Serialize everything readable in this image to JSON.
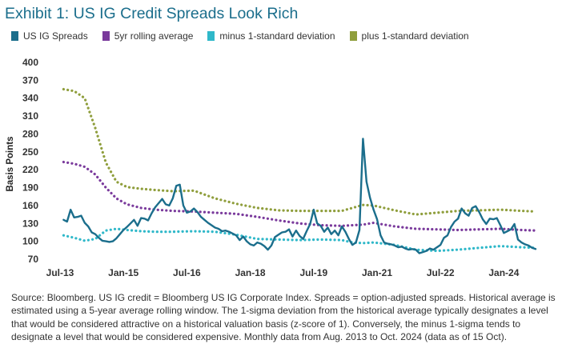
{
  "chart_data": {
    "type": "line",
    "title": "Exhibit 1: US IG Credit Spreads Look Rich",
    "xlabel": "",
    "ylabel": "Basis Points",
    "ylim": [
      70,
      400
    ],
    "yticks": [
      70,
      100,
      130,
      160,
      190,
      220,
      250,
      280,
      310,
      340,
      370,
      400
    ],
    "xlim": [
      "2013-08",
      "2024-10"
    ],
    "xticks": [
      {
        "x": "2013-07",
        "label": "Jul-13"
      },
      {
        "x": "2015-01",
        "label": "Jan-15"
      },
      {
        "x": "2016-07",
        "label": "Jul-16"
      },
      {
        "x": "2018-01",
        "label": "Jan-18"
      },
      {
        "x": "2019-07",
        "label": "Jul-19"
      },
      {
        "x": "2021-01",
        "label": "Jan-21"
      },
      {
        "x": "2022-07",
        "label": "Jul-22"
      },
      {
        "x": "2024-01",
        "label": "Jan-24"
      }
    ],
    "grid": false,
    "legend_position": "top",
    "series": [
      {
        "name": "US IG Spreads",
        "color": "#1b6e8c",
        "style": "solid",
        "points": [
          [
            "2013-08",
            136
          ],
          [
            "2013-09",
            133
          ],
          [
            "2013-10",
            153
          ],
          [
            "2013-11",
            140
          ],
          [
            "2013-12",
            141
          ],
          [
            "2014-01",
            143
          ],
          [
            "2014-02",
            131
          ],
          [
            "2014-03",
            125
          ],
          [
            "2014-04",
            115
          ],
          [
            "2014-05",
            112
          ],
          [
            "2014-06",
            106
          ],
          [
            "2014-07",
            101
          ],
          [
            "2014-08",
            100
          ],
          [
            "2014-09",
            99
          ],
          [
            "2014-10",
            100
          ],
          [
            "2014-11",
            105
          ],
          [
            "2014-12",
            112
          ],
          [
            "2015-01",
            119
          ],
          [
            "2015-02",
            124
          ],
          [
            "2015-03",
            130
          ],
          [
            "2015-04",
            136
          ],
          [
            "2015-05",
            126
          ],
          [
            "2015-06",
            139
          ],
          [
            "2015-07",
            138
          ],
          [
            "2015-08",
            135
          ],
          [
            "2015-09",
            147
          ],
          [
            "2015-10",
            157
          ],
          [
            "2015-11",
            164
          ],
          [
            "2015-12",
            171
          ],
          [
            "2016-01",
            162
          ],
          [
            "2016-02",
            160
          ],
          [
            "2016-03",
            172
          ],
          [
            "2016-04",
            193
          ],
          [
            "2016-05",
            195
          ],
          [
            "2016-06",
            160
          ],
          [
            "2016-07",
            148
          ],
          [
            "2016-08",
            150
          ],
          [
            "2016-09",
            155
          ],
          [
            "2016-10",
            149
          ],
          [
            "2016-11",
            141
          ],
          [
            "2016-12",
            136
          ],
          [
            "2017-01",
            131
          ],
          [
            "2017-02",
            127
          ],
          [
            "2017-03",
            123
          ],
          [
            "2017-04",
            121
          ],
          [
            "2017-05",
            117
          ],
          [
            "2017-06",
            118
          ],
          [
            "2017-07",
            116
          ],
          [
            "2017-08",
            113
          ],
          [
            "2017-09",
            110
          ],
          [
            "2017-10",
            102
          ],
          [
            "2017-11",
            108
          ],
          [
            "2017-12",
            100
          ],
          [
            "2018-01",
            95
          ],
          [
            "2018-02",
            93
          ],
          [
            "2018-03",
            98
          ],
          [
            "2018-04",
            96
          ],
          [
            "2018-05",
            92
          ],
          [
            "2018-06",
            86
          ],
          [
            "2018-07",
            93
          ],
          [
            "2018-08",
            107
          ],
          [
            "2018-09",
            111
          ],
          [
            "2018-10",
            115
          ],
          [
            "2018-11",
            116
          ],
          [
            "2018-12",
            120
          ],
          [
            "2019-01",
            108
          ],
          [
            "2019-02",
            118
          ],
          [
            "2019-03",
            109
          ],
          [
            "2019-04",
            104
          ],
          [
            "2019-05",
            117
          ],
          [
            "2019-06",
            129
          ],
          [
            "2019-07",
            153
          ],
          [
            "2019-08",
            130
          ],
          [
            "2019-09",
            126
          ],
          [
            "2019-10",
            116
          ],
          [
            "2019-11",
            123
          ],
          [
            "2019-12",
            112
          ],
          [
            "2020-01",
            118
          ],
          [
            "2020-02",
            110
          ],
          [
            "2020-03",
            125
          ],
          [
            "2020-04",
            116
          ],
          [
            "2020-05",
            104
          ],
          [
            "2020-06",
            94
          ],
          [
            "2020-07",
            98
          ],
          [
            "2020-08",
            119
          ],
          [
            "2020-09",
            272
          ],
          [
            "2020-10",
            200
          ],
          [
            "2020-11",
            173
          ],
          [
            "2020-12",
            153
          ],
          [
            "2021-01",
            137
          ],
          [
            "2021-02",
            110
          ],
          [
            "2021-03",
            98
          ],
          [
            "2021-04",
            96
          ],
          [
            "2021-05",
            95
          ],
          [
            "2021-06",
            93
          ],
          [
            "2021-07",
            90
          ],
          [
            "2021-08",
            91
          ],
          [
            "2021-09",
            88
          ],
          [
            "2021-10",
            86
          ],
          [
            "2021-11",
            87
          ],
          [
            "2021-12",
            86
          ],
          [
            "2022-01",
            80
          ],
          [
            "2022-02",
            82
          ],
          [
            "2022-03",
            84
          ],
          [
            "2022-04",
            88
          ],
          [
            "2022-05",
            86
          ],
          [
            "2022-06",
            90
          ],
          [
            "2022-07",
            94
          ],
          [
            "2022-08",
            106
          ],
          [
            "2022-09",
            110
          ],
          [
            "2022-10",
            124
          ],
          [
            "2022-11",
            133
          ],
          [
            "2022-12",
            138
          ],
          [
            "2023-01",
            155
          ],
          [
            "2023-02",
            147
          ],
          [
            "2023-03",
            143
          ],
          [
            "2023-04",
            156
          ],
          [
            "2023-05",
            159
          ],
          [
            "2023-06",
            149
          ],
          [
            "2023-07",
            137
          ],
          [
            "2023-08",
            129
          ],
          [
            "2023-09",
            138
          ],
          [
            "2023-10",
            137
          ],
          [
            "2023-11",
            139
          ],
          [
            "2023-12",
            127
          ],
          [
            "2024-01",
            114
          ],
          [
            "2024-02",
            117
          ],
          [
            "2024-03",
            120
          ],
          [
            "2024-04",
            129
          ],
          [
            "2024-05",
            103
          ],
          [
            "2024-06",
            98
          ],
          [
            "2024-07",
            95
          ],
          [
            "2024-08",
            93
          ],
          [
            "2024-09",
            89
          ],
          [
            "2024-10",
            87
          ]
        ]
      },
      {
        "name": "5yr rolling average",
        "color": "#7a3a9c",
        "style": "dotted",
        "points": [
          [
            "2013-08",
            233
          ],
          [
            "2013-11",
            230
          ],
          [
            "2014-02",
            225
          ],
          [
            "2014-05",
            212
          ],
          [
            "2014-08",
            190
          ],
          [
            "2014-11",
            172
          ],
          [
            "2015-02",
            162
          ],
          [
            "2015-06",
            156
          ],
          [
            "2015-10",
            153
          ],
          [
            "2016-03",
            151
          ],
          [
            "2016-09",
            150
          ],
          [
            "2017-03",
            148
          ],
          [
            "2017-09",
            146
          ],
          [
            "2018-03",
            141
          ],
          [
            "2018-09",
            135
          ],
          [
            "2019-03",
            130
          ],
          [
            "2019-09",
            127
          ],
          [
            "2020-03",
            126
          ],
          [
            "2020-09",
            128
          ],
          [
            "2020-12",
            131
          ],
          [
            "2021-06",
            125
          ],
          [
            "2021-12",
            121
          ],
          [
            "2022-06",
            120
          ],
          [
            "2022-12",
            119
          ],
          [
            "2023-06",
            120
          ],
          [
            "2023-12",
            121
          ],
          [
            "2024-06",
            119
          ],
          [
            "2024-10",
            118
          ]
        ]
      },
      {
        "name": "minus 1-standard deviation",
        "color": "#2fb8c9",
        "style": "dotted",
        "points": [
          [
            "2013-08",
            110
          ],
          [
            "2013-11",
            106
          ],
          [
            "2014-02",
            101
          ],
          [
            "2014-05",
            104
          ],
          [
            "2014-08",
            118
          ],
          [
            "2014-11",
            121
          ],
          [
            "2015-02",
            119
          ],
          [
            "2015-06",
            117
          ],
          [
            "2015-10",
            116
          ],
          [
            "2016-03",
            116
          ],
          [
            "2016-09",
            117
          ],
          [
            "2017-03",
            116
          ],
          [
            "2017-09",
            111
          ],
          [
            "2018-03",
            104
          ],
          [
            "2018-09",
            103
          ],
          [
            "2019-03",
            102
          ],
          [
            "2019-09",
            103
          ],
          [
            "2020-03",
            102
          ],
          [
            "2020-06",
            98
          ],
          [
            "2020-09",
            97
          ],
          [
            "2020-12",
            98
          ],
          [
            "2021-06",
            94
          ],
          [
            "2021-12",
            86
          ],
          [
            "2022-06",
            84
          ],
          [
            "2022-12",
            86
          ],
          [
            "2023-06",
            89
          ],
          [
            "2023-12",
            92
          ],
          [
            "2024-06",
            90
          ],
          [
            "2024-10",
            89
          ]
        ]
      },
      {
        "name": "plus 1-standard deviation",
        "color": "#8f9e3c",
        "style": "dotted",
        "points": [
          [
            "2013-08",
            355
          ],
          [
            "2013-11",
            352
          ],
          [
            "2014-02",
            340
          ],
          [
            "2014-05",
            290
          ],
          [
            "2014-08",
            232
          ],
          [
            "2014-11",
            200
          ],
          [
            "2015-02",
            191
          ],
          [
            "2015-06",
            188
          ],
          [
            "2015-10",
            186
          ],
          [
            "2016-03",
            184
          ],
          [
            "2016-09",
            185
          ],
          [
            "2017-03",
            172
          ],
          [
            "2017-09",
            163
          ],
          [
            "2018-03",
            156
          ],
          [
            "2018-09",
            152
          ],
          [
            "2019-03",
            151
          ],
          [
            "2019-09",
            151
          ],
          [
            "2020-03",
            151
          ],
          [
            "2020-09",
            161
          ],
          [
            "2020-12",
            160
          ],
          [
            "2021-06",
            152
          ],
          [
            "2021-12",
            145
          ],
          [
            "2022-06",
            148
          ],
          [
            "2022-12",
            151
          ],
          [
            "2023-06",
            152
          ],
          [
            "2023-12",
            153
          ],
          [
            "2024-06",
            151
          ],
          [
            "2024-10",
            150
          ]
        ]
      }
    ]
  },
  "source_note": "Source: Bloomberg. US IG credit = Bloomberg US IG Corporate Index. Spreads = option-adjusted spreads. Historical average is estimated using a 5-year average rolling window. The 1-sigma deviation from the historical average typically designates a level that would be considered attractive on a historical valuation basis (z-score of 1). Conversely, the minus 1-sigma tends to designate a level that would be considered expensive. Monthly data from Aug. 2013 to Oct. 2024 (data as of 15 Oct)."
}
